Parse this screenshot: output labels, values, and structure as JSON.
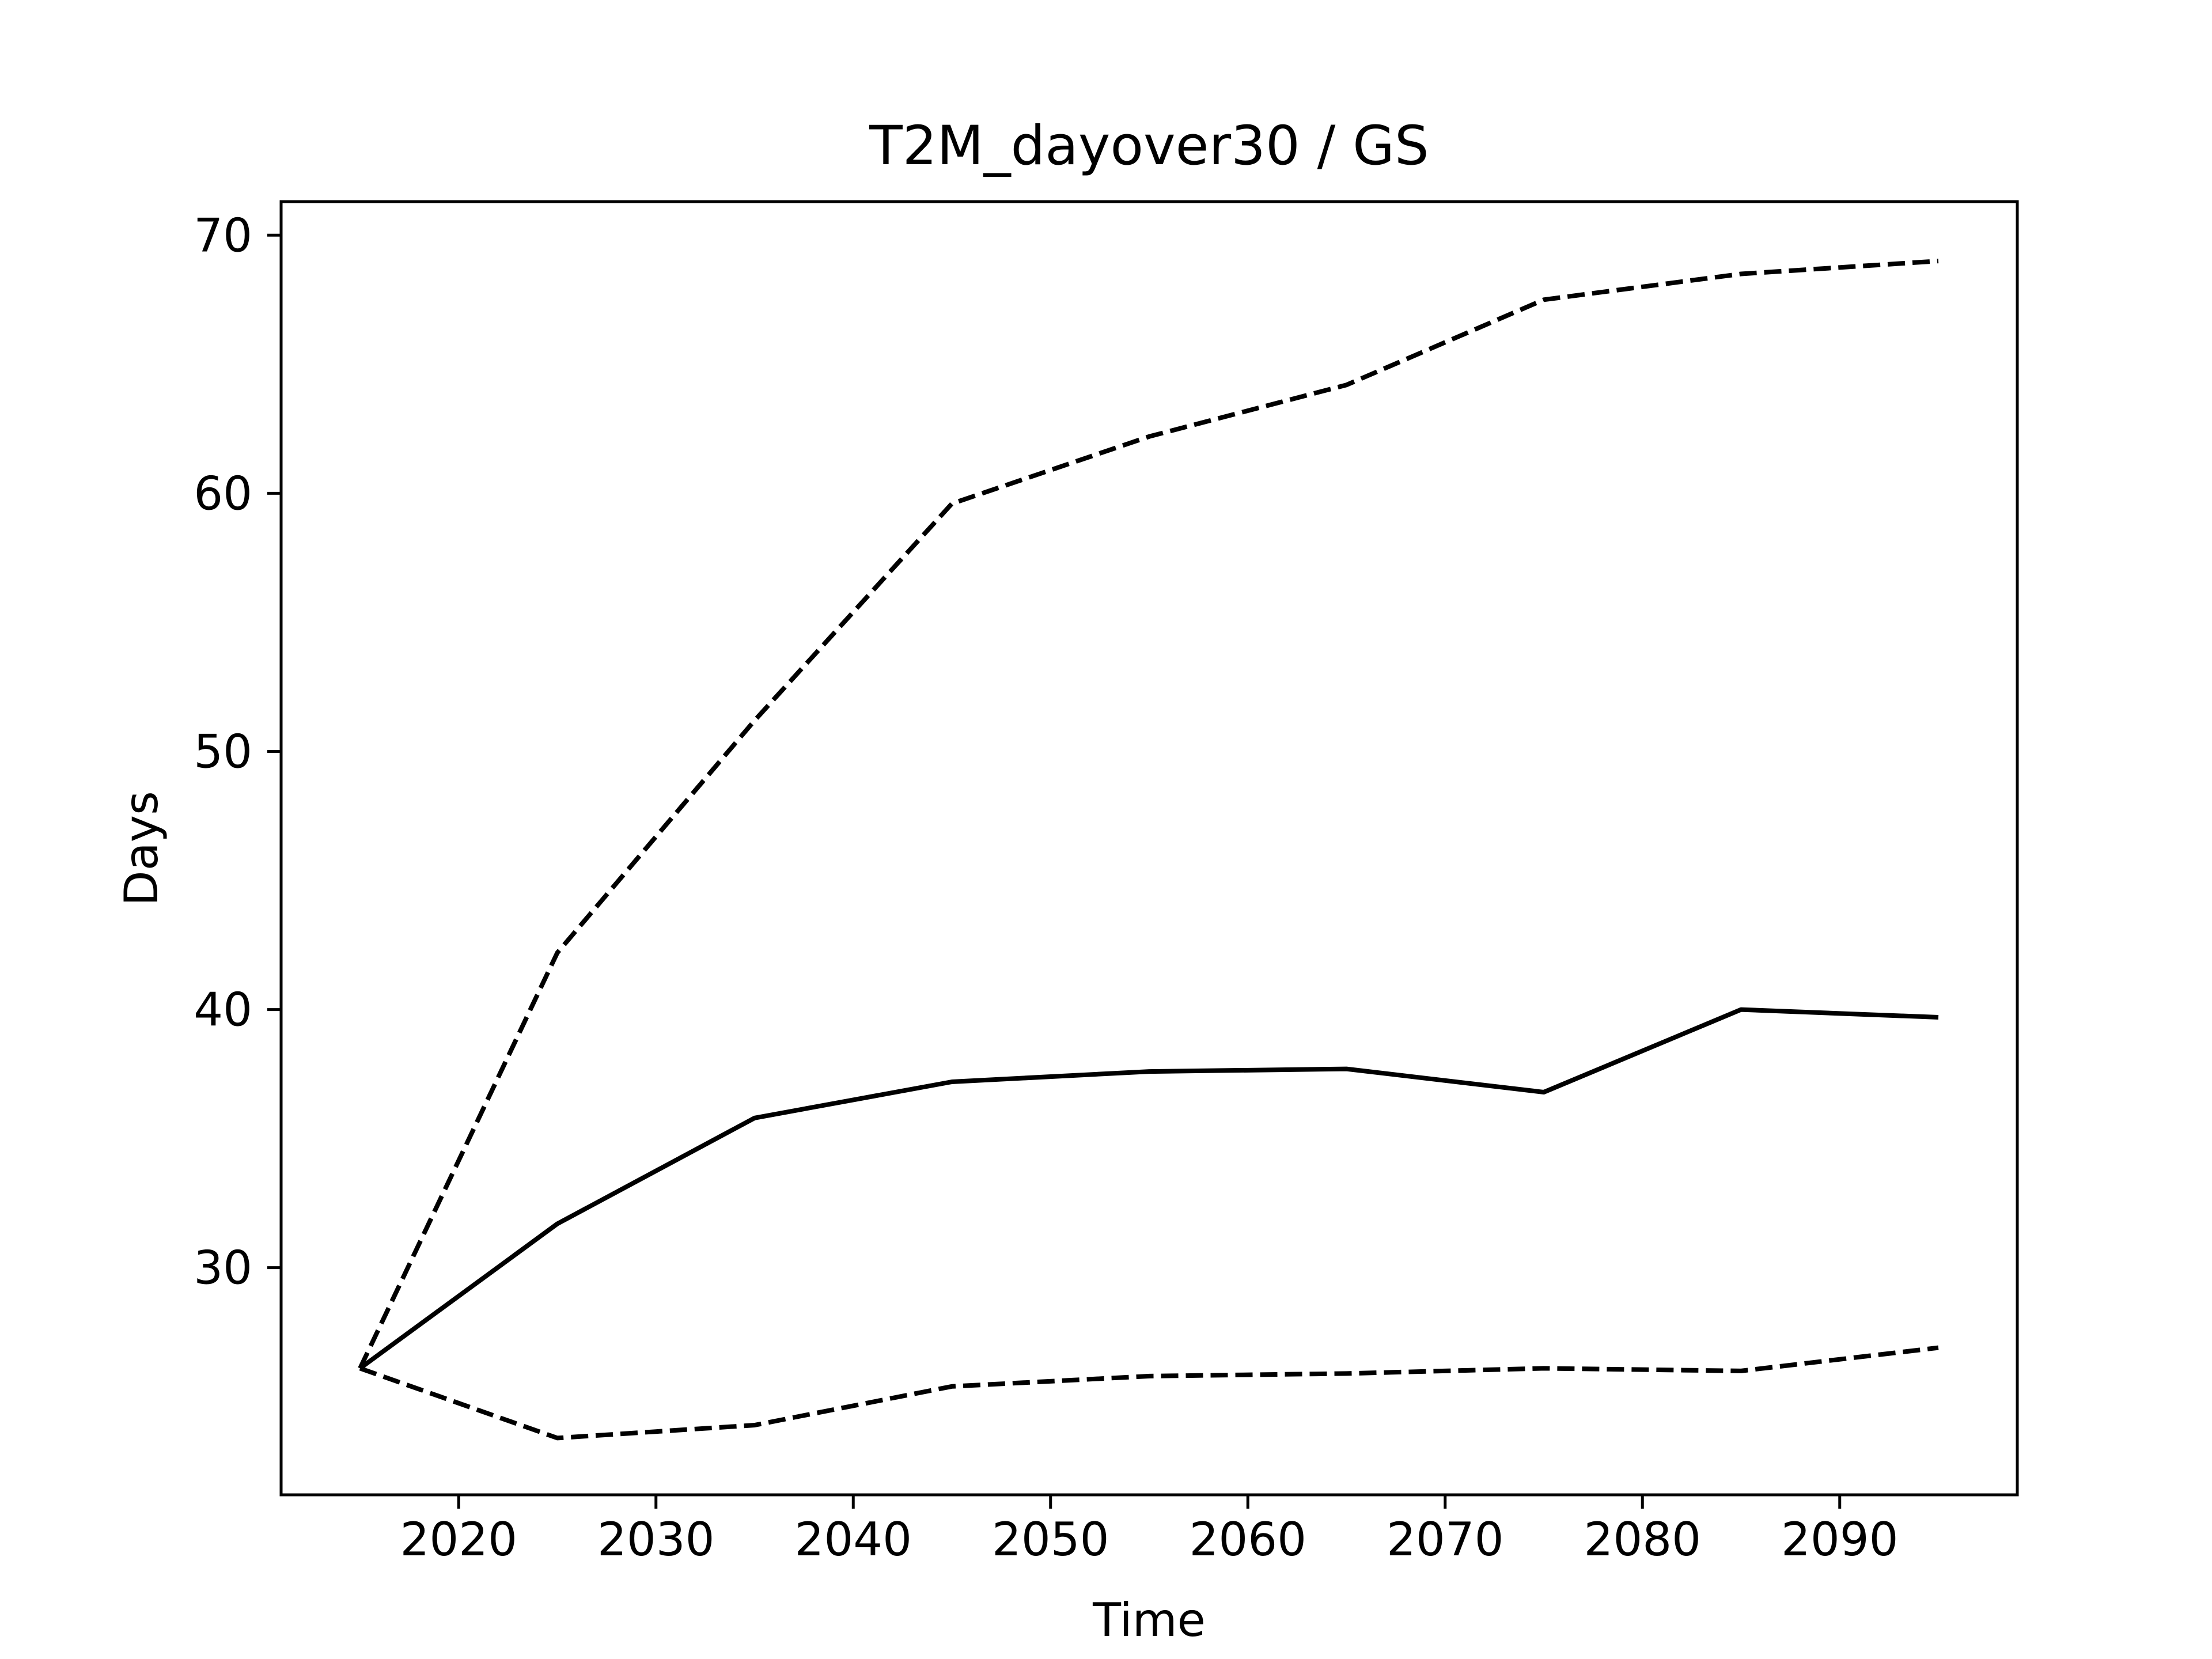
{
  "chart_data": {
    "type": "line",
    "title": "T2M_dayover30 / GS",
    "xlabel": "Time",
    "ylabel": "Days",
    "xlim": [
      2011,
      2099
    ],
    "ylim": [
      21.2,
      71.3
    ],
    "xticks": [
      2020,
      2030,
      2040,
      2050,
      2060,
      2070,
      2080,
      2090
    ],
    "yticks": [
      30,
      40,
      50,
      60,
      70
    ],
    "grid": false,
    "legend": "none",
    "x": [
      2015,
      2025,
      2035,
      2045,
      2055,
      2065,
      2075,
      2085,
      2095
    ],
    "series": [
      {
        "style": "solid",
        "color": "#000000",
        "values": [
          26.1,
          31.7,
          35.8,
          37.2,
          37.6,
          37.7,
          36.8,
          40.0,
          39.7
        ]
      },
      {
        "style": "dashed",
        "color": "#000000",
        "values": [
          26.1,
          42.2,
          51.2,
          59.6,
          62.2,
          64.2,
          67.5,
          68.5,
          69.0
        ]
      },
      {
        "style": "dashed",
        "color": "#000000",
        "values": [
          26.1,
          23.4,
          23.9,
          25.4,
          25.8,
          25.9,
          26.1,
          26.0,
          26.9
        ]
      }
    ]
  }
}
